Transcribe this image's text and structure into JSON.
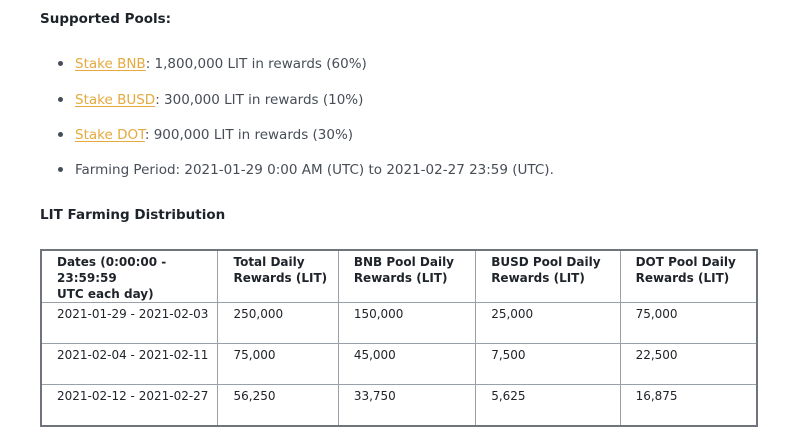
{
  "pools_heading": "Supported Pools:",
  "pools": [
    {
      "link": "Stake BNB",
      "text": ": 1,800,000 LIT in rewards (60%)"
    },
    {
      "link": "Stake BUSD",
      "text": ": 300,000 LIT in rewards (10%)"
    },
    {
      "link": "Stake DOT",
      "text": ": 900,000 LIT in rewards (30%)"
    }
  ],
  "farming_period": "Farming Period: 2021-01-29 0:00 AM (UTC) to 2021-02-27 23:59 (UTC).",
  "distribution_heading": "LIT Farming Distribution",
  "table": {
    "headers": [
      [
        "Dates (0:00:00 - 23:59:59",
        "UTC each day)"
      ],
      [
        "Total Daily",
        "Rewards (LIT)"
      ],
      [
        "BNB Pool Daily",
        "Rewards (LIT)"
      ],
      [
        "BUSD Pool Daily",
        "Rewards (LIT)"
      ],
      [
        "DOT Pool Daily",
        "Rewards (LIT)"
      ]
    ],
    "rows": [
      [
        "2021-01-29 - 2021-02-03",
        "250,000",
        "150,000",
        "25,000",
        "75,000"
      ],
      [
        "2021-02-04 - 2021-02-11",
        "75,000",
        "45,000",
        "7,500",
        "22,500"
      ],
      [
        "2021-02-12 - 2021-02-27",
        "56,250",
        "33,750",
        "5,625",
        "16,875"
      ]
    ]
  },
  "colors": {
    "link": "#e5a93d",
    "text": "#474d57",
    "heading": "#1e2329"
  }
}
